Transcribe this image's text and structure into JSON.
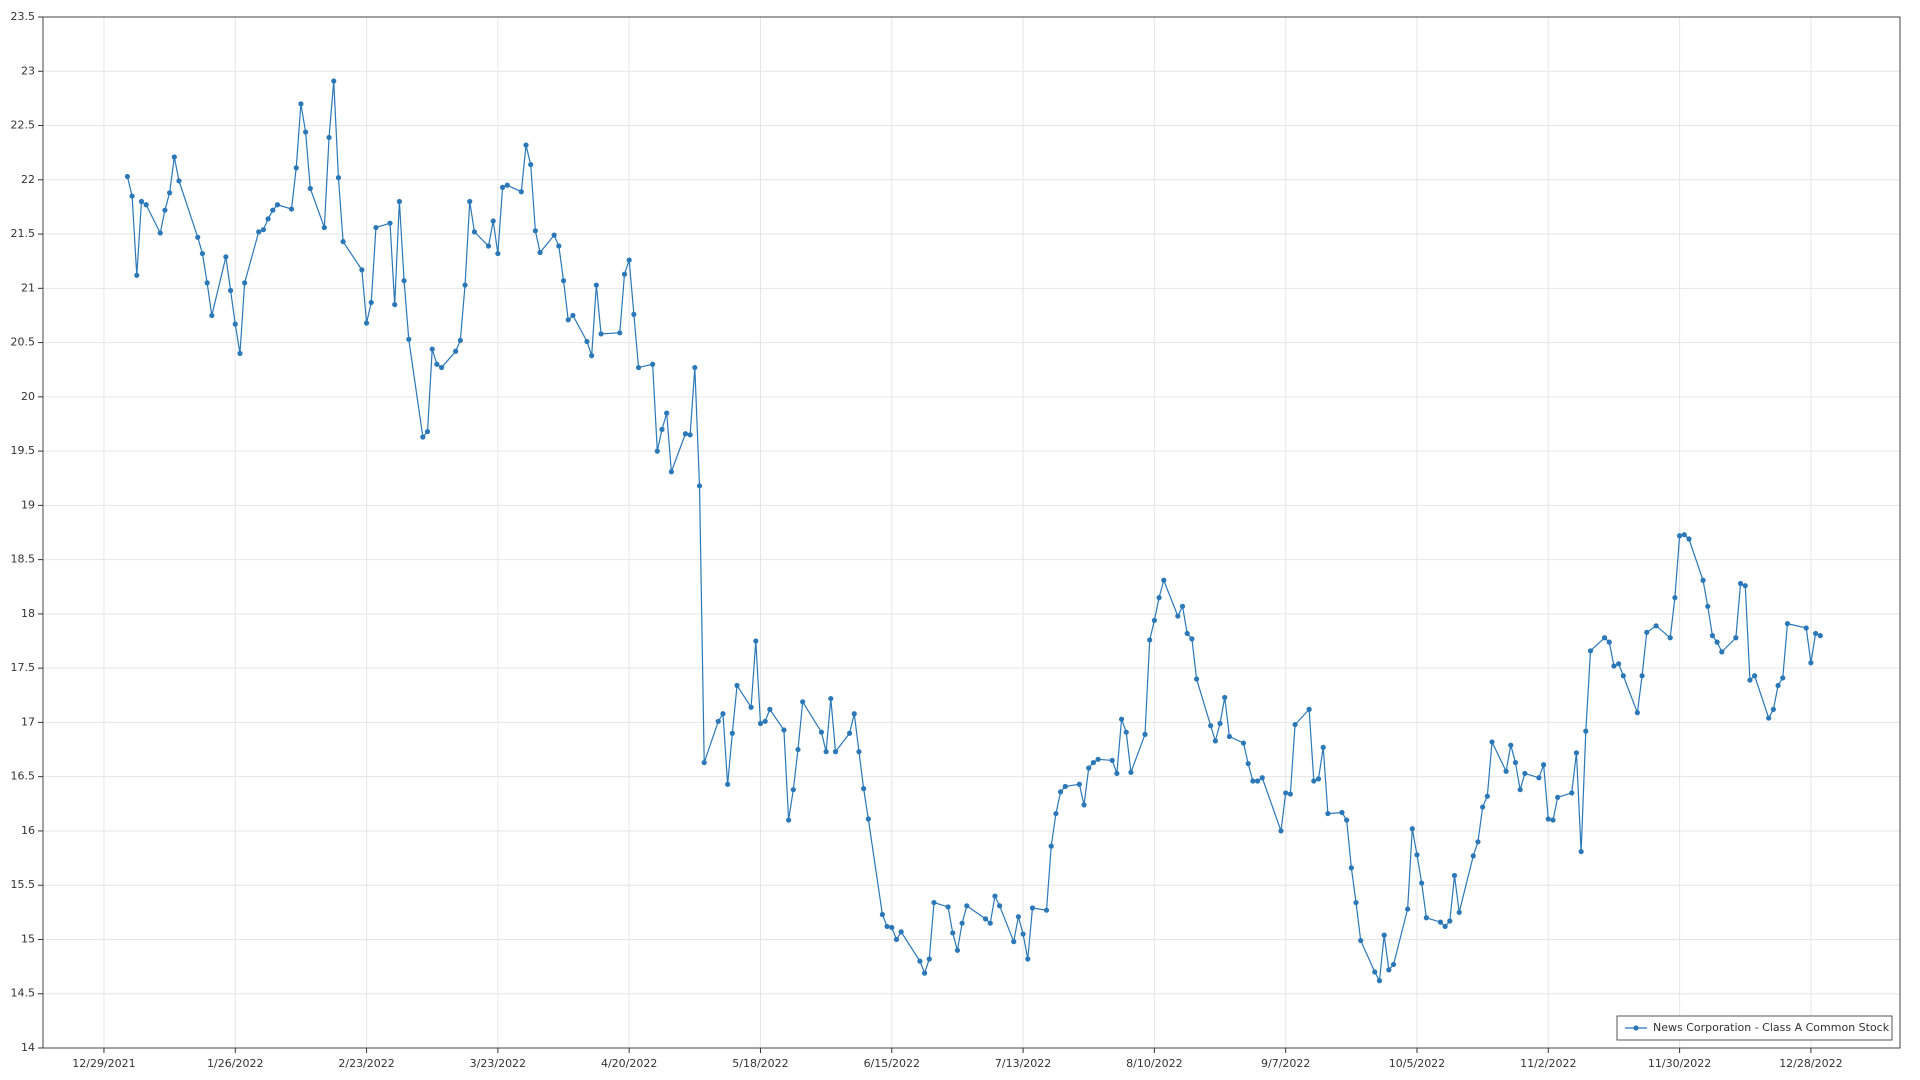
{
  "chart_data": {
    "type": "line",
    "x": [
      "2022-01-03",
      "2022-01-04",
      "2022-01-05",
      "2022-01-06",
      "2022-01-07",
      "2022-01-10",
      "2022-01-11",
      "2022-01-12",
      "2022-01-13",
      "2022-01-14",
      "2022-01-18",
      "2022-01-19",
      "2022-01-20",
      "2022-01-21",
      "2022-01-24",
      "2022-01-25",
      "2022-01-26",
      "2022-01-27",
      "2022-01-28",
      "2022-01-31",
      "2022-02-01",
      "2022-02-02",
      "2022-02-03",
      "2022-02-04",
      "2022-02-07",
      "2022-02-08",
      "2022-02-09",
      "2022-02-10",
      "2022-02-11",
      "2022-02-14",
      "2022-02-15",
      "2022-02-16",
      "2022-02-17",
      "2022-02-18",
      "2022-02-22",
      "2022-02-23",
      "2022-02-24",
      "2022-02-25",
      "2022-02-28",
      "2022-03-01",
      "2022-03-02",
      "2022-03-03",
      "2022-03-04",
      "2022-03-07",
      "2022-03-08",
      "2022-03-09",
      "2022-03-10",
      "2022-03-11",
      "2022-03-14",
      "2022-03-15",
      "2022-03-16",
      "2022-03-17",
      "2022-03-18",
      "2022-03-21",
      "2022-03-22",
      "2022-03-23",
      "2022-03-24",
      "2022-03-25",
      "2022-03-28",
      "2022-03-29",
      "2022-03-30",
      "2022-03-31",
      "2022-04-01",
      "2022-04-04",
      "2022-04-05",
      "2022-04-06",
      "2022-04-07",
      "2022-04-08",
      "2022-04-11",
      "2022-04-12",
      "2022-04-13",
      "2022-04-14",
      "2022-04-18",
      "2022-04-19",
      "2022-04-20",
      "2022-04-21",
      "2022-04-22",
      "2022-04-25",
      "2022-04-26",
      "2022-04-27",
      "2022-04-28",
      "2022-04-29",
      "2022-05-02",
      "2022-05-03",
      "2022-05-04",
      "2022-05-05",
      "2022-05-06",
      "2022-05-09",
      "2022-05-10",
      "2022-05-11",
      "2022-05-12",
      "2022-05-13",
      "2022-05-16",
      "2022-05-17",
      "2022-05-18",
      "2022-05-19",
      "2022-05-20",
      "2022-05-23",
      "2022-05-24",
      "2022-05-25",
      "2022-05-26",
      "2022-05-27",
      "2022-05-31",
      "2022-06-01",
      "2022-06-02",
      "2022-06-03",
      "2022-06-06",
      "2022-06-07",
      "2022-06-08",
      "2022-06-09",
      "2022-06-10",
      "2022-06-13",
      "2022-06-14",
      "2022-06-15",
      "2022-06-16",
      "2022-06-17",
      "2022-06-21",
      "2022-06-22",
      "2022-06-23",
      "2022-06-24",
      "2022-06-27",
      "2022-06-28",
      "2022-06-29",
      "2022-06-30",
      "2022-07-01",
      "2022-07-05",
      "2022-07-06",
      "2022-07-07",
      "2022-07-08",
      "2022-07-11",
      "2022-07-12",
      "2022-07-13",
      "2022-07-14",
      "2022-07-15",
      "2022-07-18",
      "2022-07-19",
      "2022-07-20",
      "2022-07-21",
      "2022-07-22",
      "2022-07-25",
      "2022-07-26",
      "2022-07-27",
      "2022-07-28",
      "2022-07-29",
      "2022-08-01",
      "2022-08-02",
      "2022-08-03",
      "2022-08-04",
      "2022-08-05",
      "2022-08-08",
      "2022-08-09",
      "2022-08-10",
      "2022-08-11",
      "2022-08-12",
      "2022-08-15",
      "2022-08-16",
      "2022-08-17",
      "2022-08-18",
      "2022-08-19",
      "2022-08-22",
      "2022-08-23",
      "2022-08-24",
      "2022-08-25",
      "2022-08-26",
      "2022-08-29",
      "2022-08-30",
      "2022-08-31",
      "2022-09-01",
      "2022-09-02",
      "2022-09-06",
      "2022-09-07",
      "2022-09-08",
      "2022-09-09",
      "2022-09-12",
      "2022-09-13",
      "2022-09-14",
      "2022-09-15",
      "2022-09-16",
      "2022-09-19",
      "2022-09-20",
      "2022-09-21",
      "2022-09-22",
      "2022-09-23",
      "2022-09-26",
      "2022-09-27",
      "2022-09-28",
      "2022-09-29",
      "2022-09-30",
      "2022-10-03",
      "2022-10-04",
      "2022-10-05",
      "2022-10-06",
      "2022-10-07",
      "2022-10-10",
      "2022-10-11",
      "2022-10-12",
      "2022-10-13",
      "2022-10-14",
      "2022-10-17",
      "2022-10-18",
      "2022-10-19",
      "2022-10-20",
      "2022-10-21",
      "2022-10-24",
      "2022-10-25",
      "2022-10-26",
      "2022-10-27",
      "2022-10-28",
      "2022-10-31",
      "2022-11-01",
      "2022-11-02",
      "2022-11-03",
      "2022-11-04",
      "2022-11-07",
      "2022-11-08",
      "2022-11-09",
      "2022-11-10",
      "2022-11-11",
      "2022-11-14",
      "2022-11-15",
      "2022-11-16",
      "2022-11-17",
      "2022-11-18",
      "2022-11-21",
      "2022-11-22",
      "2022-11-23",
      "2022-11-25",
      "2022-11-28",
      "2022-11-29",
      "2022-11-30",
      "2022-12-01",
      "2022-12-02",
      "2022-12-05",
      "2022-12-06",
      "2022-12-07",
      "2022-12-08",
      "2022-12-09",
      "2022-12-12",
      "2022-12-13",
      "2022-12-14",
      "2022-12-15",
      "2022-12-16",
      "2022-12-19",
      "2022-12-20",
      "2022-12-21",
      "2022-12-22",
      "2022-12-23",
      "2022-12-27",
      "2022-12-28",
      "2022-12-29",
      "2022-12-30"
    ],
    "series": [
      {
        "name": "News Corporation - Class A Common Stock",
        "color": "#2a78b8",
        "values": [
          22.03,
          21.85,
          21.12,
          21.8,
          21.77,
          21.51,
          21.72,
          21.88,
          22.21,
          21.99,
          21.47,
          21.32,
          21.05,
          20.75,
          21.29,
          20.98,
          20.67,
          20.4,
          21.05,
          21.52,
          21.54,
          21.64,
          21.72,
          21.77,
          21.73,
          22.11,
          22.7,
          22.44,
          21.92,
          21.56,
          22.39,
          22.91,
          22.02,
          21.43,
          21.17,
          20.68,
          20.87,
          21.56,
          21.6,
          20.85,
          21.8,
          21.07,
          20.53,
          19.63,
          19.68,
          20.44,
          20.3,
          20.27,
          20.42,
          20.52,
          21.03,
          21.8,
          21.52,
          21.39,
          21.62,
          21.32,
          21.93,
          21.95,
          21.89,
          22.32,
          22.14,
          21.53,
          21.33,
          21.49,
          21.39,
          21.07,
          20.71,
          20.75,
          20.51,
          20.38,
          21.03,
          20.58,
          20.59,
          21.13,
          21.26,
          20.76,
          20.27,
          20.3,
          19.5,
          19.7,
          19.85,
          19.31,
          19.66,
          19.65,
          20.27,
          19.18,
          16.63,
          17.01,
          17.08,
          16.43,
          16.9,
          17.34,
          17.14,
          17.75,
          16.99,
          17.01,
          17.12,
          16.93,
          16.1,
          16.38,
          16.75,
          17.19,
          16.91,
          16.73,
          17.22,
          16.73,
          16.9,
          17.08,
          16.73,
          16.39,
          16.11,
          15.23,
          15.12,
          15.11,
          15.0,
          15.07,
          14.8,
          14.69,
          14.82,
          15.34,
          15.3,
          15.06,
          14.9,
          15.15,
          15.31,
          15.19,
          15.15,
          15.4,
          15.31,
          14.98,
          15.21,
          15.05,
          14.82,
          15.29,
          15.27,
          15.86,
          16.16,
          16.36,
          16.41,
          16.43,
          16.24,
          16.58,
          16.63,
          16.66,
          16.65,
          16.53,
          17.03,
          16.91,
          16.54,
          16.89,
          17.76,
          17.94,
          18.15,
          18.31,
          17.98,
          18.07,
          17.82,
          17.77,
          17.4,
          16.97,
          16.83,
          16.99,
          17.23,
          16.87,
          16.81,
          16.62,
          16.46,
          16.46,
          16.49,
          16.0,
          16.35,
          16.34,
          16.98,
          17.12,
          16.46,
          16.48,
          16.77,
          16.16,
          16.17,
          16.1,
          15.66,
          15.34,
          14.99,
          14.7,
          14.62,
          15.04,
          14.72,
          14.77,
          15.28,
          16.02,
          15.78,
          15.52,
          15.2,
          15.16,
          15.12,
          15.17,
          15.59,
          15.25,
          15.77,
          15.9,
          16.22,
          16.32,
          16.82,
          16.55,
          16.79,
          16.63,
          16.38,
          16.53,
          16.49,
          16.61,
          16.11,
          16.1,
          16.31,
          16.35,
          16.72,
          15.81,
          16.92,
          17.66,
          17.78,
          17.74,
          17.52,
          17.54,
          17.43,
          17.09,
          17.43,
          17.83,
          17.89,
          17.78,
          18.15,
          18.72,
          18.73,
          18.69,
          18.31,
          18.07,
          17.8,
          17.74,
          17.65,
          17.78,
          18.28,
          18.26,
          17.39,
          17.43,
          17.04,
          17.12,
          17.34,
          17.41,
          17.91,
          17.87,
          17.55,
          17.82,
          17.8
        ]
      }
    ],
    "xlim": [
      "2021-12-16",
      "2023-01-16"
    ],
    "xticks": [
      {
        "value": "2021-12-29",
        "label": "12/29/2021"
      },
      {
        "value": "2022-01-26",
        "label": "1/26/2022"
      },
      {
        "value": "2022-02-23",
        "label": "2/23/2022"
      },
      {
        "value": "2022-03-23",
        "label": "3/23/2022"
      },
      {
        "value": "2022-04-20",
        "label": "4/20/2022"
      },
      {
        "value": "2022-05-18",
        "label": "5/18/2022"
      },
      {
        "value": "2022-06-15",
        "label": "6/15/2022"
      },
      {
        "value": "2022-07-13",
        "label": "7/13/2022"
      },
      {
        "value": "2022-08-10",
        "label": "8/10/2022"
      },
      {
        "value": "2022-09-07",
        "label": "9/7/2022"
      },
      {
        "value": "2022-10-05",
        "label": "10/5/2022"
      },
      {
        "value": "2022-11-02",
        "label": "11/2/2022"
      },
      {
        "value": "2022-11-30",
        "label": "11/30/2022"
      },
      {
        "value": "2022-12-28",
        "label": "12/28/2022"
      }
    ],
    "ylim": [
      14,
      23.5
    ],
    "yticks": [
      14,
      14.5,
      15,
      15.5,
      16,
      16.5,
      17,
      17.5,
      18,
      18.5,
      19,
      19.5,
      20,
      20.5,
      21,
      21.5,
      22,
      22.5,
      23,
      23.5
    ],
    "grid": true,
    "legend": "lower right"
  }
}
